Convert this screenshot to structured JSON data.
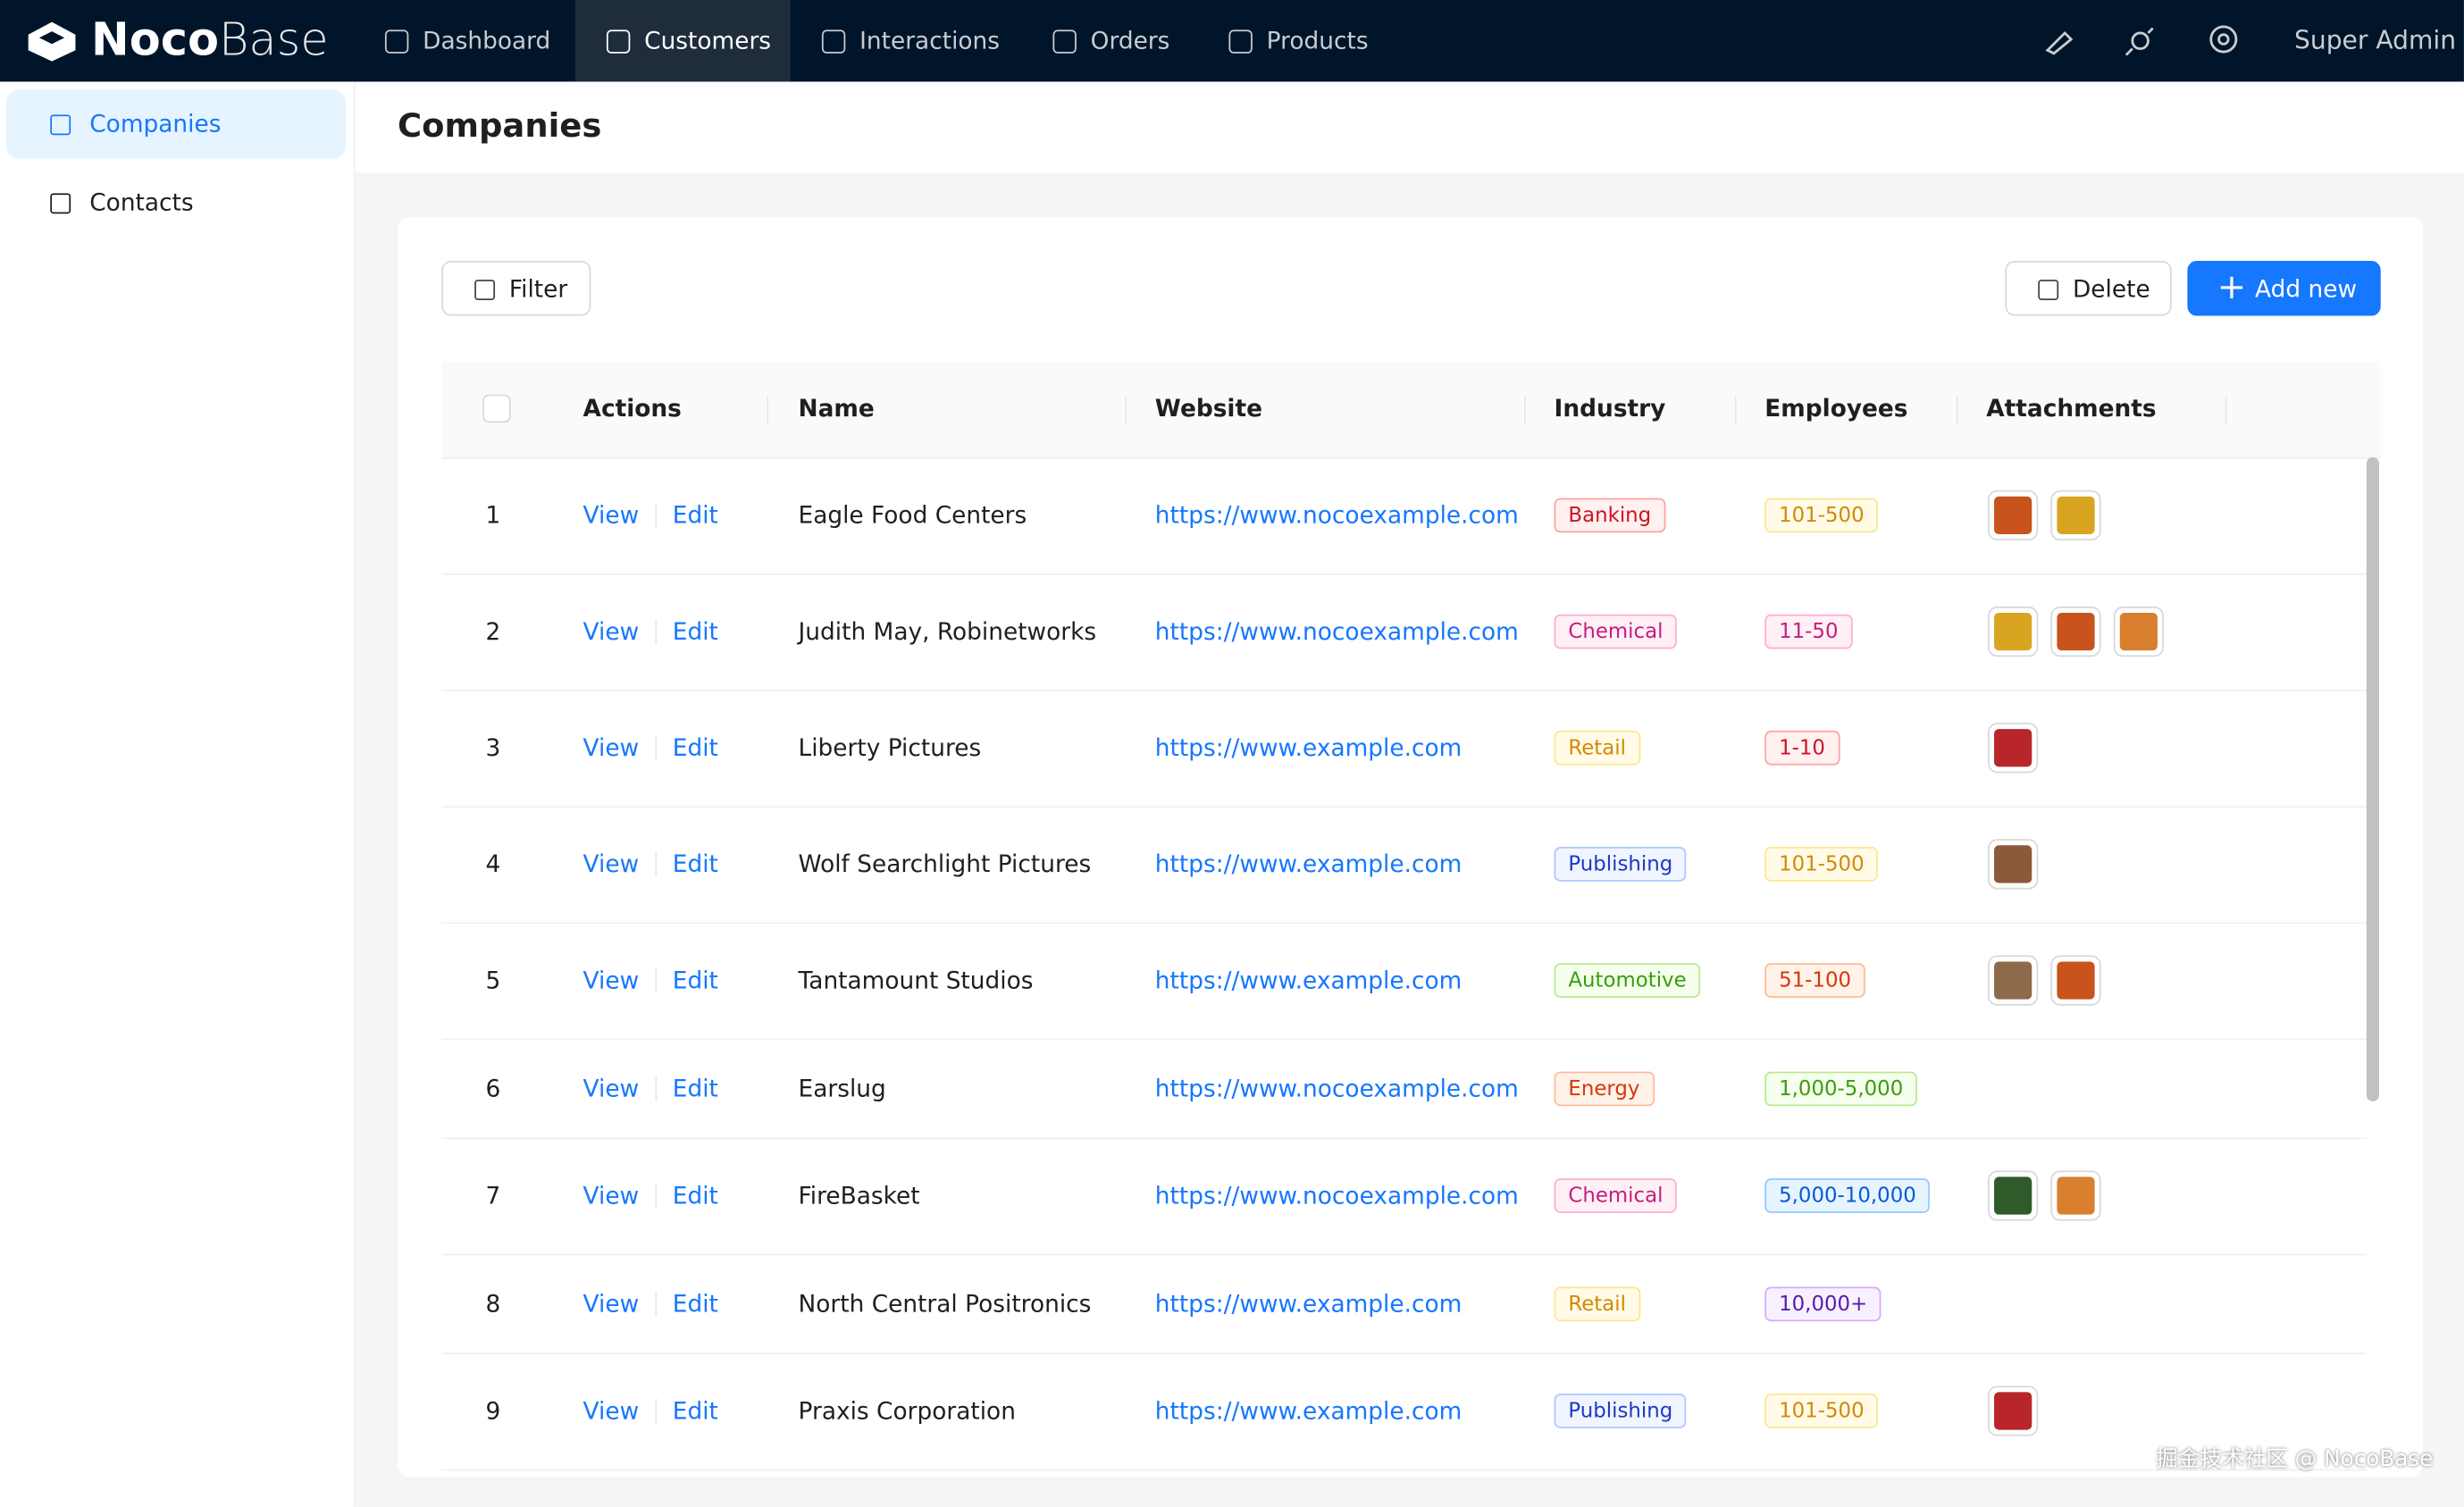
{
  "brand": {
    "bold": "Noco",
    "light": "Base"
  },
  "nav": {
    "items": [
      "Dashboard",
      "Customers",
      "Interactions",
      "Orders",
      "Products"
    ],
    "active": 1,
    "user": "Super Admin"
  },
  "sidebar": {
    "items": [
      "Companies",
      "Contacts"
    ],
    "active": 0
  },
  "page_title": "Companies",
  "toolbar": {
    "filter": "Filter",
    "delete": "Delete",
    "add": "Add new"
  },
  "table": {
    "columns": [
      "Actions",
      "Name",
      "Website",
      "Industry",
      "Employees",
      "Attachments"
    ],
    "actions": [
      "View",
      "Edit"
    ],
    "rows": [
      {
        "index": 1,
        "name": "Eagle Food Centers",
        "website": "https://www.nocoexample.com",
        "industry": {
          "label": "Banking",
          "color": "red"
        },
        "employees": {
          "label": "101-500",
          "color": "gold"
        },
        "attachments": [
          "#c8531c",
          "#d9a520"
        ]
      },
      {
        "index": 2,
        "name": "Judith May, Robinetworks",
        "website": "https://www.nocoexample.com",
        "industry": {
          "label": "Chemical",
          "color": "magenta"
        },
        "employees": {
          "label": "11-50",
          "color": "magenta"
        },
        "attachments": [
          "#d9a520",
          "#c8531c",
          "#d9802e"
        ]
      },
      {
        "index": 3,
        "name": "Liberty Pictures",
        "website": "https://www.example.com",
        "industry": {
          "label": "Retail",
          "color": "gold"
        },
        "employees": {
          "label": "1-10",
          "color": "red"
        },
        "attachments": [
          "#b8262a"
        ]
      },
      {
        "index": 4,
        "name": "Wolf Searchlight Pictures",
        "website": "https://www.example.com",
        "industry": {
          "label": "Publishing",
          "color": "geekblue"
        },
        "employees": {
          "label": "101-500",
          "color": "gold"
        },
        "attachments": [
          "#8a5a3a"
        ]
      },
      {
        "index": 5,
        "name": "Tantamount Studios",
        "website": "https://www.example.com",
        "industry": {
          "label": "Automotive",
          "color": "green"
        },
        "employees": {
          "label": "51-100",
          "color": "volcano"
        },
        "attachments": [
          "#8c6a4a",
          "#c8531c"
        ]
      },
      {
        "index": 6,
        "name": "Earslug",
        "website": "https://www.nocoexample.com",
        "industry": {
          "label": "Energy",
          "color": "volcano"
        },
        "employees": {
          "label": "1,000-5,000",
          "color": "green"
        },
        "attachments": []
      },
      {
        "index": 7,
        "name": "FireBasket",
        "website": "https://www.nocoexample.com",
        "industry": {
          "label": "Chemical",
          "color": "magenta"
        },
        "employees": {
          "label": "5,000-10,000",
          "color": "blue"
        },
        "attachments": [
          "#2f5a2a",
          "#d9802e"
        ]
      },
      {
        "index": 8,
        "name": "North Central Positronics",
        "website": "https://www.example.com",
        "industry": {
          "label": "Retail",
          "color": "gold"
        },
        "employees": {
          "label": "10,000+",
          "color": "purple"
        },
        "attachments": []
      },
      {
        "index": 9,
        "name": "Praxis Corporation",
        "website": "https://www.example.com",
        "industry": {
          "label": "Publishing",
          "color": "geekblue"
        },
        "employees": {
          "label": "101-500",
          "color": "gold"
        },
        "attachments": [
          "#b8262a"
        ]
      }
    ]
  },
  "watermark": "掘金技术社区 @ NocoBase"
}
